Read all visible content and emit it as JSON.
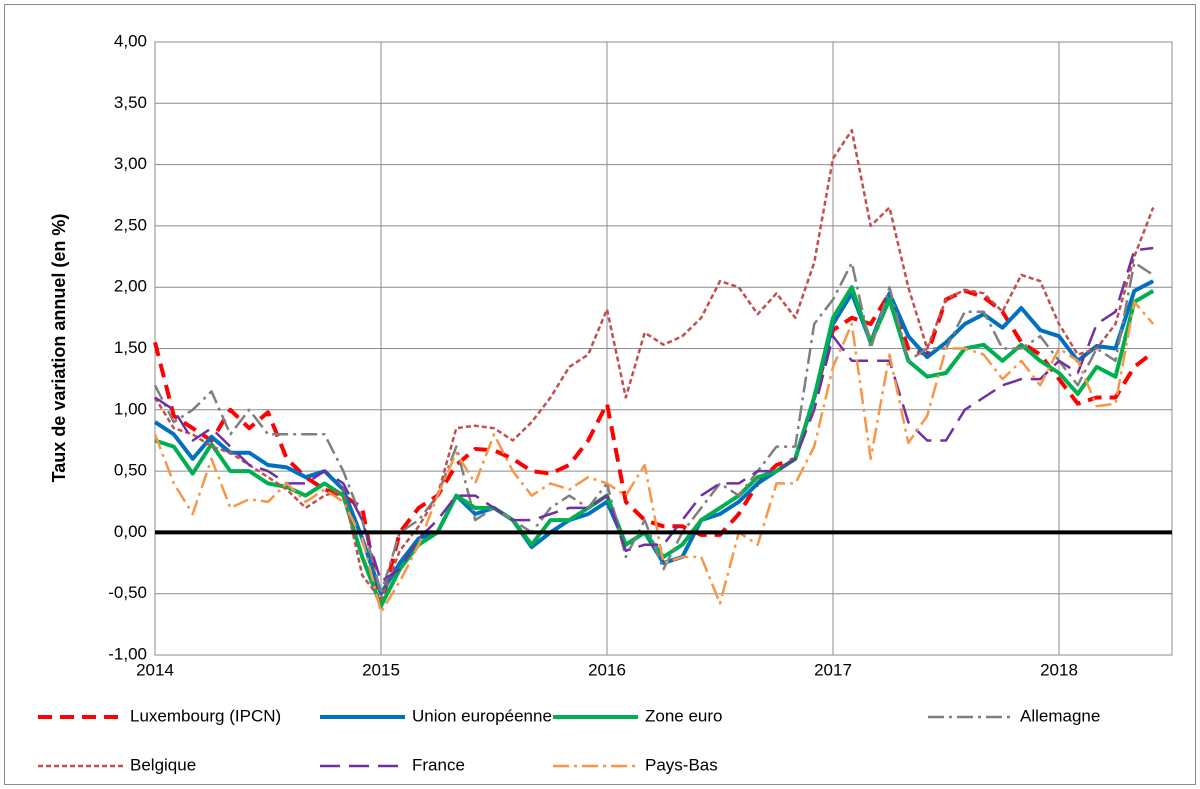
{
  "chart_data": {
    "type": "line",
    "ylabel": "Taux de variation annuel (en %)",
    "x": [
      2014,
      2014.083,
      2014.167,
      2014.25,
      2014.333,
      2014.417,
      2014.5,
      2014.583,
      2014.667,
      2014.75,
      2014.833,
      2014.917,
      2015,
      2015.083,
      2015.167,
      2015.25,
      2015.333,
      2015.417,
      2015.5,
      2015.583,
      2015.667,
      2015.75,
      2015.833,
      2015.917,
      2016,
      2016.083,
      2016.167,
      2016.25,
      2016.333,
      2016.417,
      2016.5,
      2016.583,
      2016.667,
      2016.75,
      2016.833,
      2016.917,
      2017,
      2017.083,
      2017.167,
      2017.25,
      2017.333,
      2017.417,
      2017.5,
      2017.583,
      2017.667,
      2017.75,
      2017.833,
      2017.917,
      2018,
      2018.083,
      2018.167,
      2018.25,
      2018.333,
      2018.417
    ],
    "xlim": [
      2014,
      2018.5
    ],
    "xticks": [
      2014,
      2015,
      2016,
      2017,
      2018
    ],
    "ylim": [
      -1,
      4
    ],
    "yticks": [
      {
        "value": -1,
        "label": "-1,00"
      },
      {
        "value": -0.5,
        "label": "-0,50"
      },
      {
        "value": 0,
        "label": "0,00"
      },
      {
        "value": 0.5,
        "label": "0,50"
      },
      {
        "value": 1,
        "label": "1,00"
      },
      {
        "value": 1.5,
        "label": "1,50"
      },
      {
        "value": 2,
        "label": "2,00"
      },
      {
        "value": 2.5,
        "label": "2,50"
      },
      {
        "value": 3,
        "label": "3,00"
      },
      {
        "value": 3.5,
        "label": "3,50"
      },
      {
        "value": 4,
        "label": "4,00"
      }
    ],
    "grid": true,
    "zero_line": true,
    "legend": "bottom",
    "series": [
      {
        "name": "Luxembourg (IPCN)",
        "color": "#ff0000",
        "linestyle": "dashed",
        "width": 4,
        "values": [
          1.55,
          0.95,
          0.85,
          0.75,
          1.0,
          0.85,
          0.98,
          0.6,
          0.45,
          0.35,
          0.3,
          0.2,
          -0.6,
          0.0,
          0.2,
          0.3,
          0.55,
          0.68,
          0.67,
          0.6,
          0.5,
          0.48,
          0.55,
          0.75,
          1.05,
          0.25,
          0.1,
          0.05,
          0.05,
          -0.02,
          -0.02,
          0.15,
          0.4,
          0.55,
          0.6,
          1.1,
          1.65,
          1.75,
          1.7,
          1.95,
          1.5,
          1.45,
          1.9,
          1.97,
          1.92,
          1.8,
          1.55,
          1.45,
          1.25,
          1.05,
          1.1,
          1.1,
          1.35,
          1.47
        ]
      },
      {
        "name": "Union européenne",
        "color": "#0070c0",
        "linestyle": "solid",
        "width": 4,
        "values": [
          0.9,
          0.8,
          0.6,
          0.78,
          0.65,
          0.65,
          0.55,
          0.53,
          0.45,
          0.5,
          0.35,
          -0.05,
          -0.5,
          -0.25,
          -0.05,
          0.0,
          0.3,
          0.15,
          0.2,
          0.1,
          -0.12,
          0.0,
          0.1,
          0.15,
          0.25,
          -0.1,
          0.0,
          -0.25,
          -0.2,
          0.1,
          0.15,
          0.25,
          0.4,
          0.5,
          0.6,
          1.1,
          1.7,
          1.95,
          1.55,
          1.95,
          1.6,
          1.43,
          1.55,
          1.7,
          1.78,
          1.67,
          1.83,
          1.65,
          1.6,
          1.4,
          1.52,
          1.5,
          1.97,
          2.05
        ]
      },
      {
        "name": "Zone euro",
        "color": "#00b050",
        "linestyle": "solid",
        "width": 4,
        "values": [
          0.75,
          0.7,
          0.48,
          0.72,
          0.5,
          0.5,
          0.4,
          0.37,
          0.3,
          0.4,
          0.3,
          -0.2,
          -0.6,
          -0.3,
          -0.1,
          0.0,
          0.3,
          0.2,
          0.2,
          0.1,
          -0.1,
          0.1,
          0.1,
          0.2,
          0.3,
          -0.1,
          0.0,
          -0.2,
          -0.1,
          0.1,
          0.2,
          0.3,
          0.45,
          0.5,
          0.6,
          1.1,
          1.75,
          2.0,
          1.55,
          1.9,
          1.4,
          1.27,
          1.3,
          1.5,
          1.53,
          1.4,
          1.53,
          1.4,
          1.3,
          1.13,
          1.35,
          1.27,
          1.88,
          1.97
        ]
      },
      {
        "name": "Allemagne",
        "color": "#7f7f7f",
        "linestyle": "dashdot",
        "width": 2.5,
        "values": [
          1.2,
          0.9,
          1.0,
          1.15,
          0.8,
          1.0,
          0.8,
          0.8,
          0.8,
          0.8,
          0.5,
          0.1,
          -0.5,
          0.0,
          0.1,
          0.3,
          0.7,
          0.1,
          0.2,
          0.1,
          0.0,
          0.2,
          0.3,
          0.2,
          0.4,
          -0.2,
          0.1,
          -0.3,
          0.0,
          0.2,
          0.4,
          0.3,
          0.5,
          0.7,
          0.7,
          1.7,
          1.9,
          2.2,
          1.5,
          2.0,
          1.4,
          1.5,
          1.5,
          1.8,
          1.8,
          1.5,
          1.5,
          1.6,
          1.4,
          1.2,
          1.5,
          1.4,
          2.2,
          2.1
        ]
      },
      {
        "name": "Belgique",
        "color": "#c0504d",
        "linestyle": "dotted",
        "width": 2.5,
        "values": [
          1.1,
          0.85,
          0.8,
          0.7,
          0.65,
          0.55,
          0.45,
          0.35,
          0.2,
          0.3,
          0.35,
          -0.35,
          -0.55,
          -0.15,
          0.05,
          0.3,
          0.85,
          0.87,
          0.85,
          0.75,
          0.9,
          1.1,
          1.35,
          1.45,
          1.82,
          1.1,
          1.63,
          1.53,
          1.6,
          1.75,
          2.05,
          2.0,
          1.78,
          1.95,
          1.75,
          2.2,
          3.05,
          3.28,
          2.5,
          2.65,
          2.0,
          1.5,
          1.9,
          1.98,
          1.95,
          1.8,
          2.1,
          2.05,
          1.7,
          1.45,
          1.5,
          1.7,
          2.25,
          2.65
        ]
      },
      {
        "name": "France",
        "color": "#7030a0",
        "linestyle": "longdash",
        "width": 2.5,
        "values": [
          1.1,
          1.0,
          0.75,
          0.85,
          0.7,
          0.55,
          0.5,
          0.4,
          0.4,
          0.5,
          0.4,
          0.1,
          -0.4,
          -0.3,
          -0.05,
          0.1,
          0.3,
          0.3,
          0.2,
          0.1,
          0.1,
          0.15,
          0.2,
          0.2,
          0.3,
          -0.15,
          -0.1,
          -0.1,
          0.1,
          0.3,
          0.4,
          0.4,
          0.5,
          0.5,
          0.6,
          1.0,
          1.6,
          1.4,
          1.4,
          1.4,
          0.9,
          0.75,
          0.75,
          1.0,
          1.1,
          1.2,
          1.25,
          1.25,
          1.4,
          1.3,
          1.7,
          1.8,
          2.3,
          2.32
        ]
      },
      {
        "name": "Pays-Bas",
        "color": "#f79646",
        "linestyle": "dashdot",
        "width": 2.5,
        "values": [
          0.8,
          0.4,
          0.15,
          0.6,
          0.2,
          0.27,
          0.25,
          0.4,
          0.25,
          0.35,
          0.25,
          -0.05,
          -0.65,
          -0.4,
          -0.1,
          0.3,
          0.65,
          0.4,
          0.8,
          0.5,
          0.3,
          0.4,
          0.35,
          0.45,
          0.4,
          0.3,
          0.55,
          -0.25,
          -0.2,
          -0.2,
          -0.58,
          0.0,
          -0.1,
          0.4,
          0.4,
          0.7,
          1.35,
          1.7,
          0.6,
          1.45,
          0.73,
          0.95,
          1.5,
          1.5,
          1.45,
          1.25,
          1.4,
          1.2,
          1.5,
          1.4,
          1.03,
          1.05,
          1.88,
          1.7
        ]
      }
    ]
  }
}
